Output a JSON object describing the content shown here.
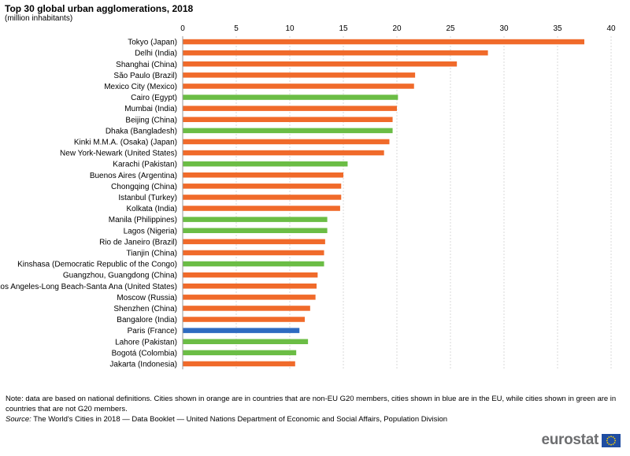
{
  "title": "Top 30 global urban agglomerations, 2018",
  "subtitle": "(million inhabitants)",
  "colors": {
    "non_eu_g20": "#f06a2a",
    "eu": "#2e6bc1",
    "not_g20": "#6bbd45",
    "grid": "#d9d9d9"
  },
  "chart_data": {
    "type": "bar",
    "orientation": "horizontal",
    "title": "Top 30 global urban agglomerations, 2018",
    "subtitle": "(million inhabitants)",
    "xlim": [
      0,
      40
    ],
    "ticks": [
      "0",
      "5",
      "10",
      "15",
      "20",
      "25",
      "30",
      "35",
      "40"
    ],
    "tick_values": [
      0,
      5,
      10,
      15,
      20,
      25,
      30,
      35,
      40
    ],
    "categories": [
      "Tokyo (Japan)",
      "Delhi (India)",
      "Shanghai (China)",
      "São Paulo (Brazil)",
      "Mexico City (Mexico)",
      "Cairo (Egypt)",
      "Mumbai (India)",
      "Beijing (China)",
      "Dhaka (Bangladesh)",
      "Kinki M.M.A. (Osaka) (Japan)",
      "New York-Newark (United States)",
      "Karachi (Pakistan)",
      "Buenos Aires (Argentina)",
      "Chongqing (China)",
      "Istanbul (Turkey)",
      "Kolkata (India)",
      "Manila (Philippines)",
      "Lagos (Nigeria)",
      "Rio de Janeiro (Brazil)",
      "Tianjin (China)",
      "Kinshasa (Democratic Republic of the Congo)",
      "Guangzhou, Guangdong (China)",
      "Los Angeles-Long Beach-Santa Ana (United States)",
      "Moscow (Russia)",
      "Shenzhen (China)",
      "Bangalore (India)",
      "Paris (France)",
      "Lahore (Pakistan)",
      "Bogotá (Colombia)",
      "Jakarta (Indonesia)"
    ],
    "values": [
      37.5,
      28.5,
      25.6,
      21.7,
      21.6,
      20.1,
      20.0,
      19.6,
      19.6,
      19.3,
      18.8,
      15.4,
      15.0,
      14.8,
      14.8,
      14.7,
      13.5,
      13.5,
      13.3,
      13.2,
      13.2,
      12.6,
      12.5,
      12.4,
      11.9,
      11.4,
      10.9,
      11.7,
      10.6,
      10.5
    ],
    "groups": [
      "non_eu_g20",
      "non_eu_g20",
      "non_eu_g20",
      "non_eu_g20",
      "non_eu_g20",
      "not_g20",
      "non_eu_g20",
      "non_eu_g20",
      "not_g20",
      "non_eu_g20",
      "non_eu_g20",
      "not_g20",
      "non_eu_g20",
      "non_eu_g20",
      "non_eu_g20",
      "non_eu_g20",
      "not_g20",
      "not_g20",
      "non_eu_g20",
      "non_eu_g20",
      "not_g20",
      "non_eu_g20",
      "non_eu_g20",
      "non_eu_g20",
      "non_eu_g20",
      "non_eu_g20",
      "eu",
      "not_g20",
      "not_g20",
      "non_eu_g20"
    ]
  },
  "footer": {
    "note": "Note: data are based on national definitions. Cities shown in orange are in countries that are non-EU G20 members, cities shown in blue are in the EU, while cities shown in green are in countries that are not G20 members.",
    "source_label": "Source:",
    "source_text": " The World's Cities in 2018 — Data Booklet — United Nations Department of Economic and Social Affairs, Population Division"
  },
  "logo": {
    "text": "eurostat"
  }
}
